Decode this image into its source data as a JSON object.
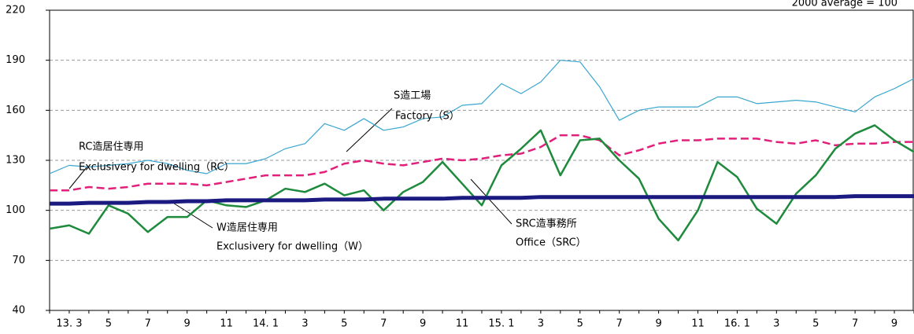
{
  "chart_data": {
    "type": "line",
    "categories": [
      null,
      "13. 3",
      null,
      "5",
      null,
      "7",
      null,
      "9",
      null,
      "11",
      null,
      "14. 1",
      null,
      "3",
      null,
      "5",
      null,
      "7",
      null,
      "9",
      null,
      "11",
      null,
      "15. 1",
      null,
      "3",
      null,
      "5",
      null,
      "7",
      null,
      "9",
      null,
      "11",
      null,
      "16. 1",
      null,
      "3",
      null,
      "5",
      null,
      "7",
      null,
      "9",
      null
    ],
    "series": [
      {
        "name": "S造工場 Factory（S）",
        "color": "#3aa6d0",
        "values": [
          122,
          127,
          126,
          127,
          128,
          130,
          128,
          124,
          122,
          128,
          128,
          131,
          137,
          140,
          152,
          148,
          155,
          148,
          150,
          155,
          156,
          163,
          164,
          176,
          170,
          177,
          190,
          189,
          174,
          154,
          160,
          162,
          162,
          162,
          168,
          168,
          164,
          165,
          166,
          165,
          162,
          159,
          168,
          173,
          179
        ]
      },
      {
        "name": "RC造居住専用 Exclusivery for dwelling（RC）",
        "color": "#e0207a",
        "dashed": true,
        "values": [
          112,
          112,
          114,
          113,
          114,
          116,
          116,
          116,
          115,
          117,
          119,
          121,
          121,
          121,
          123,
          128,
          130,
          128,
          127,
          129,
          131,
          130,
          131,
          133,
          134,
          138,
          145,
          145,
          142,
          133,
          136,
          140,
          142,
          142,
          143,
          143,
          143,
          141,
          140,
          142,
          139,
          140,
          140,
          141,
          141
        ]
      },
      {
        "name": "W造居住専用 Exclusivery for dwelling（W）",
        "color": "#1a1a80",
        "width": 5,
        "values": [
          104,
          104,
          104.5,
          104.5,
          104.5,
          105,
          105,
          105.5,
          105.5,
          106,
          106,
          106,
          106,
          106,
          106.5,
          106.5,
          106.5,
          107,
          107,
          107,
          107,
          107.5,
          107.5,
          107.5,
          107.5,
          108,
          108,
          108,
          108,
          108,
          108,
          108,
          108,
          108,
          108,
          108,
          108,
          108,
          108,
          108,
          108,
          108.5,
          108.5,
          108.5,
          108.5
        ]
      },
      {
        "name": "SRC造事務所 Office（SRC）",
        "color": "#1e8a3c",
        "width": 2.5,
        "values": [
          89,
          91,
          86,
          103,
          98,
          87,
          96,
          96,
          106,
          103,
          102,
          106,
          113,
          111,
          116,
          109,
          112,
          100,
          111,
          117,
          129,
          116,
          103,
          127,
          137,
          148,
          121,
          142,
          143,
          130,
          119,
          95,
          82,
          100,
          129,
          120,
          101,
          92,
          110,
          121,
          137,
          146,
          151,
          142,
          135
        ]
      }
    ],
    "annotations": [
      "2000 average = 100",
      "S造工場",
      "Factory（S）",
      "RC造居住専用",
      "Exclusivery for dwelling（RC）",
      "W造居住専用",
      "Exclusivery for dwelling（W）",
      "SRC造事務所",
      "Office（SRC）"
    ],
    "ylim": [
      40,
      220
    ],
    "yticks": [
      40,
      70,
      100,
      130,
      160,
      190,
      220
    ],
    "grid": true
  }
}
